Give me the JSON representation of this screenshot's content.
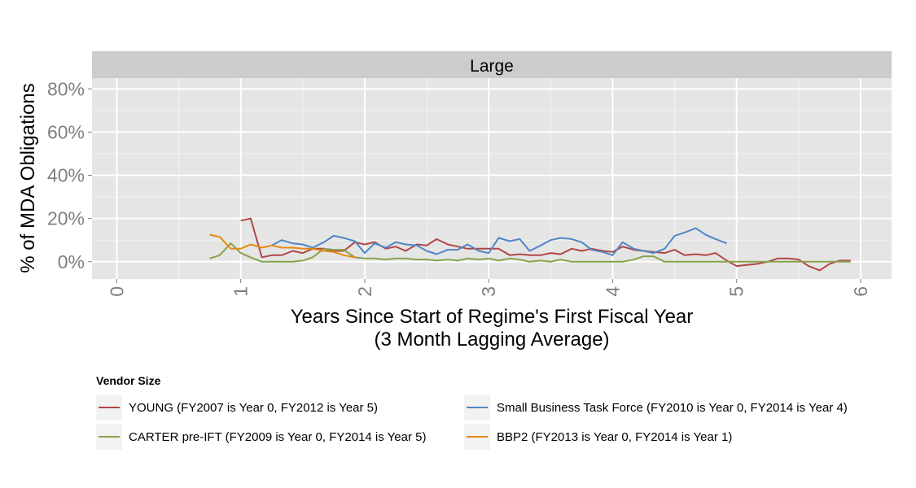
{
  "chart_data": {
    "type": "line",
    "panel_title": "Large",
    "xlabel_line1": "Years Since Start of Regime's First Fiscal Year",
    "xlabel_line2": "(3 Month Lagging Average)",
    "ylabel": "% of MDA Obligations",
    "xlim": [
      -0.2,
      6.25
    ],
    "ylim": [
      -8,
      85
    ],
    "x_ticks": [
      0,
      1,
      2,
      3,
      4,
      5,
      6
    ],
    "x_tick_labels": [
      "0",
      "1",
      "2",
      "3",
      "4",
      "5",
      "6"
    ],
    "y_ticks": [
      0,
      20,
      40,
      60,
      80
    ],
    "y_tick_labels": [
      "0%",
      "20%",
      "40%",
      "60%",
      "80%"
    ],
    "grid": true,
    "legend_position": "bottom",
    "legend_title": "Vendor Size",
    "series": [
      {
        "name": "YOUNG (FY2007 is Year 0, FY2012 is Year 5)",
        "color": "#b24745",
        "x": [
          1.0,
          1.08,
          1.17,
          1.25,
          1.33,
          1.42,
          1.5,
          1.58,
          1.67,
          1.75,
          1.83,
          1.92,
          2.0,
          2.08,
          2.17,
          2.25,
          2.33,
          2.42,
          2.5,
          2.58,
          2.67,
          2.75,
          2.83,
          2.92,
          3.0,
          3.08,
          3.17,
          3.25,
          3.33,
          3.42,
          3.5,
          3.58,
          3.67,
          3.75,
          3.83,
          3.92,
          4.0,
          4.08,
          4.17,
          4.25,
          4.33,
          4.42,
          4.5,
          4.58,
          4.67,
          4.75,
          4.83,
          4.92,
          5.0,
          5.08,
          5.17,
          5.25,
          5.33,
          5.42,
          5.5,
          5.58,
          5.67,
          5.75,
          5.83,
          5.92
        ],
        "values": [
          19,
          20,
          2,
          3,
          3,
          5,
          4,
          6,
          6,
          5,
          5,
          9,
          8,
          9,
          6,
          7,
          5,
          8,
          7.5,
          10.5,
          8,
          7,
          6,
          6,
          6,
          6,
          3,
          3.5,
          3,
          3,
          4,
          3.5,
          6,
          5,
          6,
          5,
          4.5,
          7,
          5.5,
          5,
          4.5,
          4,
          5.5,
          3,
          3.5,
          3,
          4,
          0.5,
          -2,
          -1.5,
          -1,
          0,
          1.5,
          1.5,
          1,
          -2,
          -4,
          -1,
          0.5,
          0.5
        ]
      },
      {
        "name": "CARTER pre-IFT (FY2009 is Year 0, FY2014 is Year 5)",
        "color": "#87a34a",
        "x": [
          0.75,
          0.83,
          0.92,
          1.0,
          1.08,
          1.17,
          1.25,
          1.33,
          1.42,
          1.5,
          1.58,
          1.67,
          1.75,
          1.83,
          1.92,
          2.0,
          2.08,
          2.17,
          2.25,
          2.33,
          2.42,
          2.5,
          2.58,
          2.67,
          2.75,
          2.83,
          2.92,
          3.0,
          3.08,
          3.17,
          3.25,
          3.33,
          3.42,
          3.5,
          3.58,
          3.67,
          3.75,
          3.83,
          3.92,
          4.0,
          4.08,
          4.17,
          4.25,
          4.33,
          4.42,
          4.5,
          4.58,
          4.67,
          4.75,
          4.83,
          4.92,
          5.0,
          5.08,
          5.17,
          5.25,
          5.33,
          5.42,
          5.5,
          5.58,
          5.67,
          5.75,
          5.83,
          5.92
        ],
        "values": [
          1.5,
          3,
          8.5,
          4,
          2,
          0,
          0,
          0,
          0,
          0.5,
          2,
          6,
          5.5,
          5.5,
          2,
          1.5,
          1.5,
          1,
          1.5,
          1.5,
          1,
          1,
          0.5,
          1,
          0.5,
          1.5,
          1,
          1.5,
          0.5,
          1.5,
          1,
          0,
          0.5,
          0,
          1,
          0,
          0,
          0,
          0,
          0,
          0,
          1,
          2.5,
          2.5,
          0,
          0,
          0,
          0,
          0,
          0,
          0,
          0,
          0,
          0,
          0,
          0,
          0,
          0,
          0,
          0,
          0,
          0,
          0
        ]
      },
      {
        "name": "Small Business Task Force (FY2010 is Year 0, FY2014 is Year 4)",
        "color": "#4f86c6",
        "x": [
          1.25,
          1.33,
          1.42,
          1.5,
          1.58,
          1.67,
          1.75,
          1.83,
          1.92,
          2.0,
          2.08,
          2.17,
          2.25,
          2.33,
          2.42,
          2.5,
          2.58,
          2.67,
          2.75,
          2.83,
          2.92,
          3.0,
          3.08,
          3.17,
          3.25,
          3.33,
          3.42,
          3.5,
          3.58,
          3.67,
          3.75,
          3.83,
          3.92,
          4.0,
          4.08,
          4.17,
          4.25,
          4.33,
          4.42,
          4.5,
          4.58,
          4.67,
          4.75,
          4.83,
          4.92
        ],
        "values": [
          7.5,
          10,
          8.5,
          8,
          6.5,
          9,
          12,
          11,
          9.5,
          4,
          8.5,
          6.5,
          9,
          8,
          7.5,
          5,
          3.5,
          5.5,
          5.5,
          8,
          5,
          4,
          11,
          9.5,
          10.5,
          5,
          7.5,
          10,
          11,
          10.5,
          9,
          5.5,
          4.5,
          3,
          9,
          6,
          5,
          4,
          6,
          12,
          13.5,
          15.5,
          12.5,
          10.5,
          8.5
        ]
      },
      {
        "name": "BBP2 (FY2013 is Year 0, FY2014 is Year 1)",
        "color": "#e58a12",
        "x": [
          0.75,
          0.83,
          0.92,
          1.0,
          1.08,
          1.17,
          1.25,
          1.33,
          1.42,
          1.5,
          1.58,
          1.67,
          1.75,
          1.83,
          1.92
        ],
        "values": [
          12.5,
          11.5,
          6,
          6,
          8,
          6.5,
          7.5,
          6.5,
          6.5,
          6,
          6,
          5,
          4.5,
          3,
          2
        ]
      }
    ]
  },
  "legend": {
    "title": "Vendor Size",
    "items": [
      {
        "label": "YOUNG (FY2007 is Year 0, FY2012 is Year 5)",
        "color": "#b24745"
      },
      {
        "label": "Small Business Task Force (FY2010 is Year 0, FY2014 is Year 4)",
        "color": "#4f86c6"
      },
      {
        "label": "CARTER pre-IFT (FY2009 is Year 0, FY2014 is Year 5)",
        "color": "#87a34a"
      },
      {
        "label": "BBP2 (FY2013 is Year 0, FY2014 is Year 1)",
        "color": "#e58a12"
      }
    ]
  }
}
